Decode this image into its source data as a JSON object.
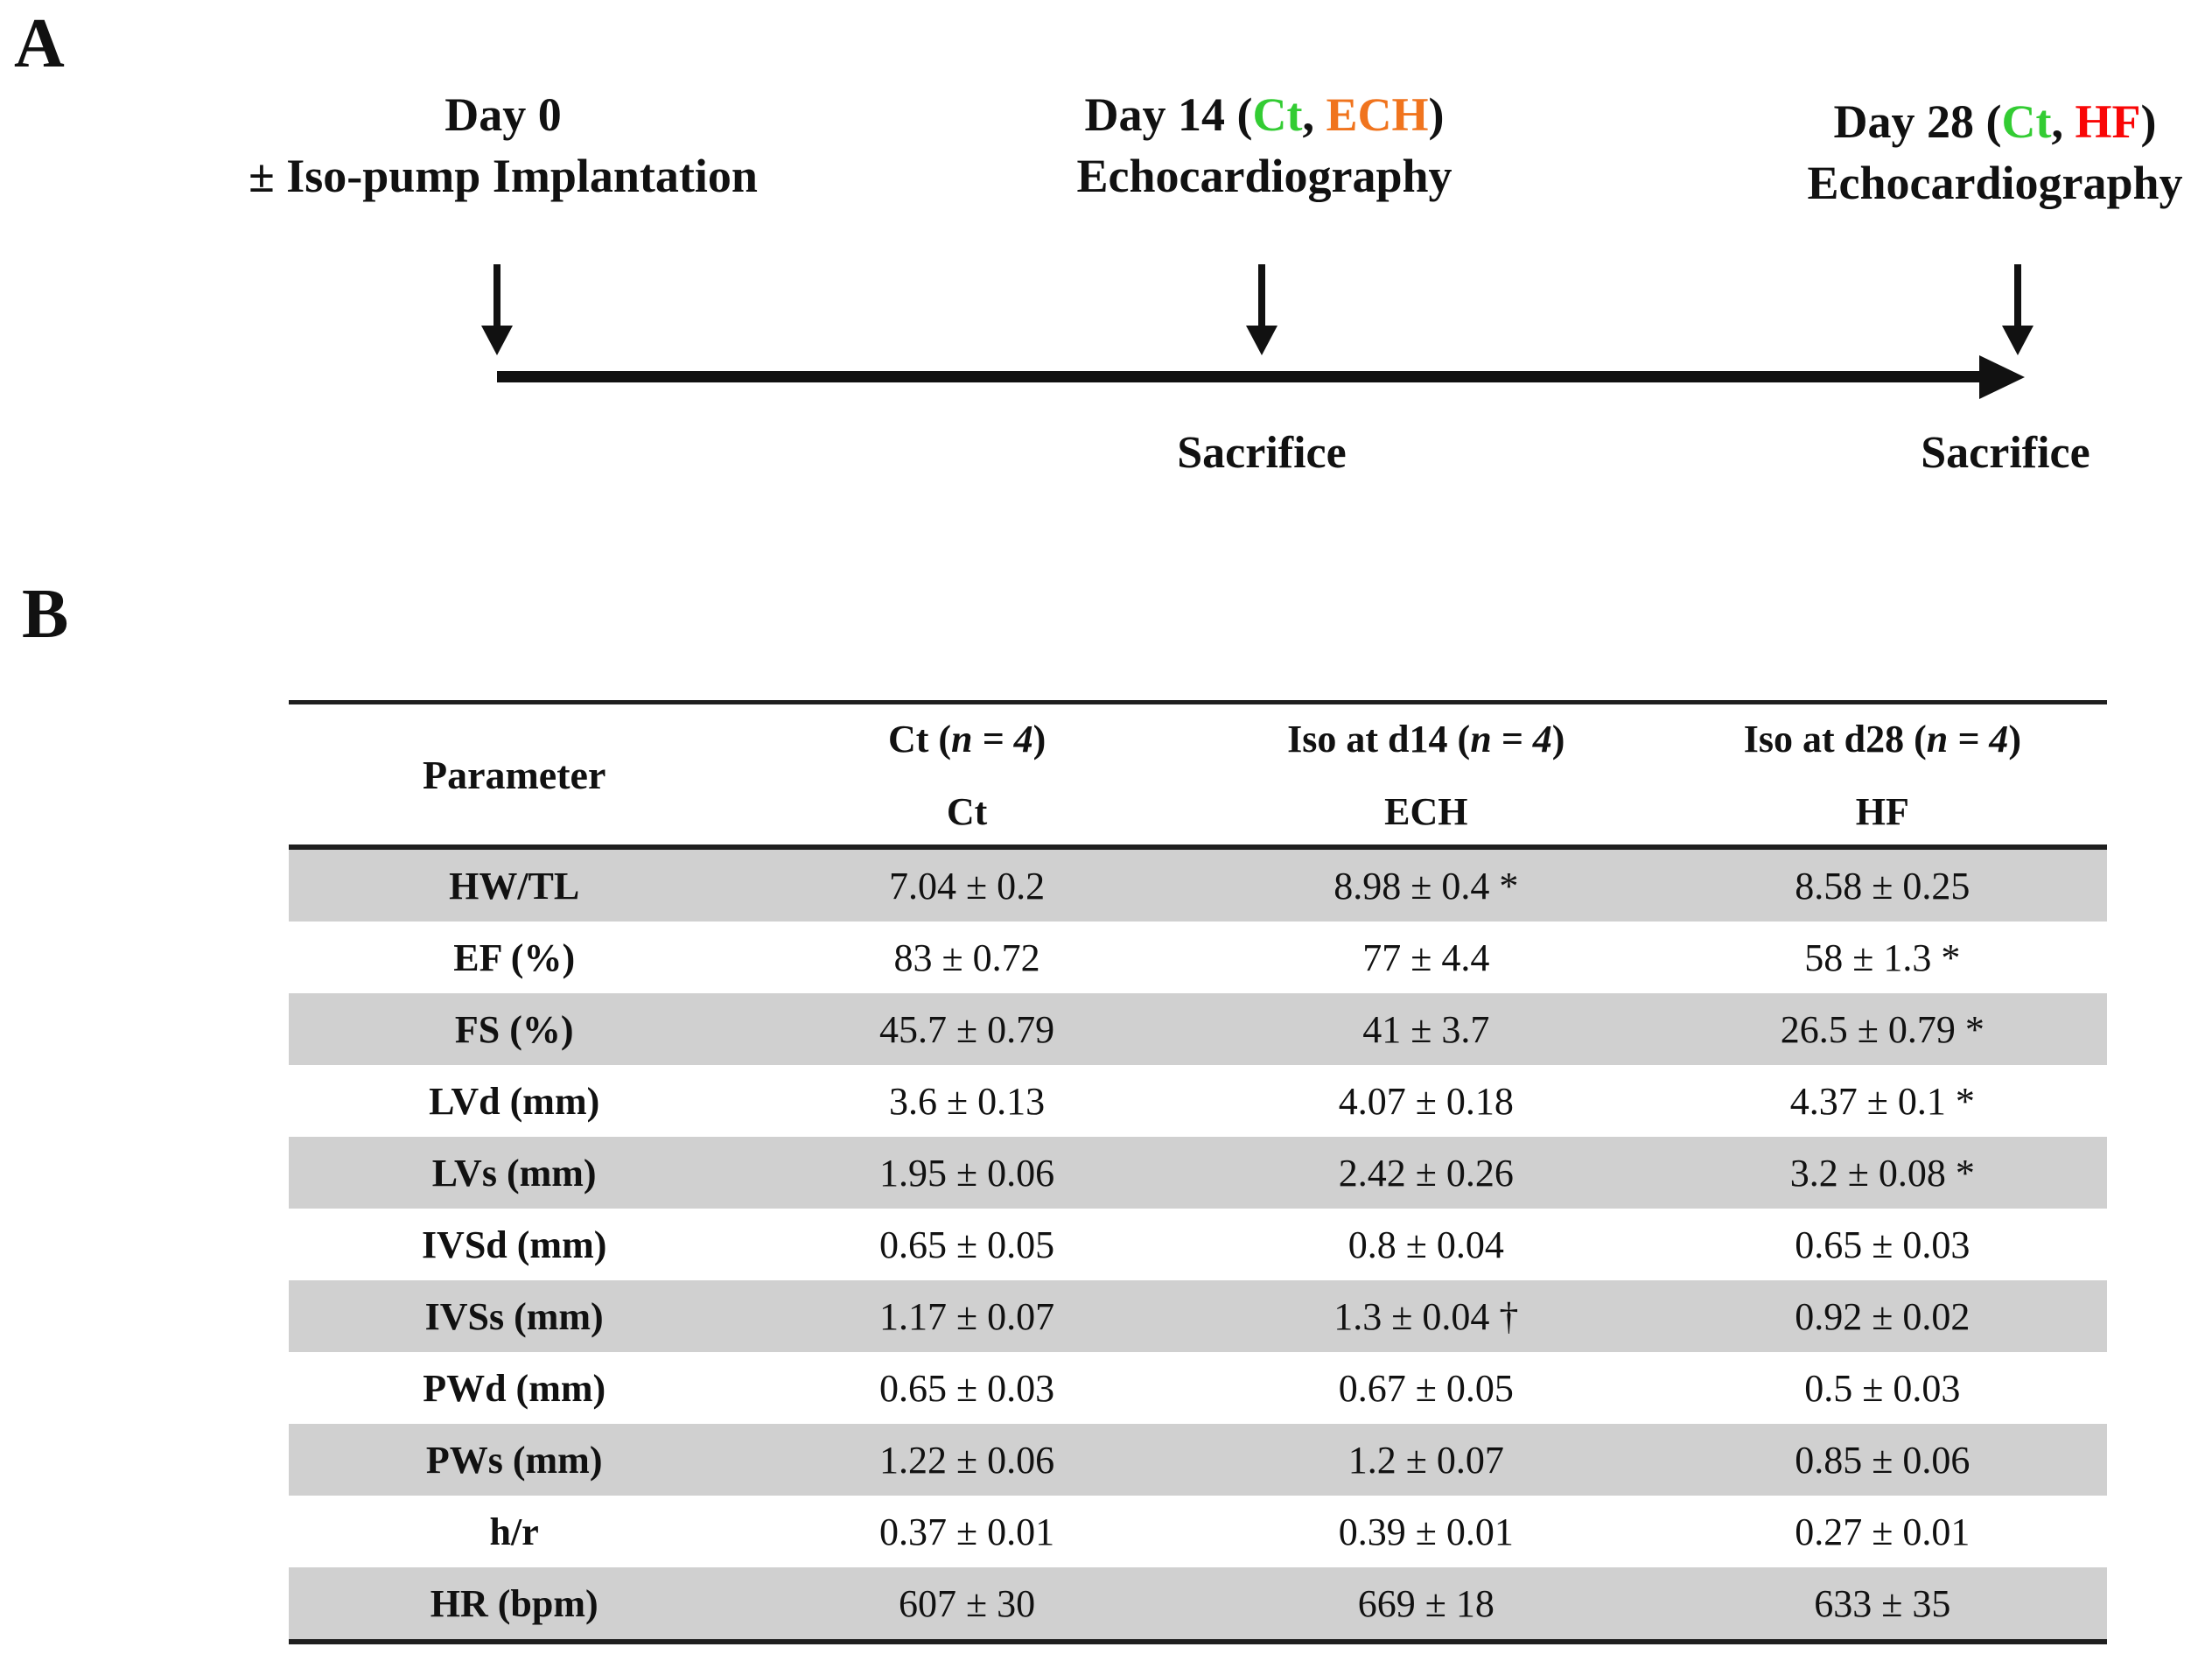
{
  "colors": {
    "green": "#33CC33",
    "orange": "#F0741E",
    "red": "#F90606",
    "text": "#111111",
    "row_gray": "#D0D0D0",
    "rule": "#1F1F1F"
  },
  "panelA": {
    "label": "A",
    "event1": {
      "line1": "Day 0",
      "line2": "± Iso-pump Implantation"
    },
    "event2": {
      "pre": "Day 14 (",
      "ct": "Ct",
      "sep": ", ",
      "grp": "ECH",
      "post": ")",
      "line2": "Echocardiography"
    },
    "event3": {
      "pre": "Day 28 (",
      "ct": "Ct",
      "sep": ", ",
      "grp": "HF",
      "post": ")",
      "line2": "Echocardiography"
    },
    "sacrifice_label": "Sacrifice"
  },
  "panelB": {
    "label": "B",
    "table": {
      "param_header": "Parameter",
      "columns": [
        {
          "group": "Ct ",
          "n_open": "(",
          "n": "n = 4",
          "n_close": ")",
          "sub": "Ct"
        },
        {
          "group": "Iso at d14 ",
          "n_open": "(",
          "n": "n = 4",
          "n_close": ")",
          "sub": "ECH"
        },
        {
          "group": "Iso at d28 ",
          "n_open": "(",
          "n": "n = 4",
          "n_close": ")",
          "sub": "HF"
        }
      ],
      "rows": [
        {
          "param": "HW/TL",
          "values": [
            "7.04 ± 0.2",
            "8.98 ± 0.4 *",
            "8.58 ± 0.25"
          ]
        },
        {
          "param": "EF (%)",
          "values": [
            "83 ± 0.72",
            "77 ± 4.4",
            "58 ± 1.3 *"
          ]
        },
        {
          "param": "FS (%)",
          "values": [
            "45.7 ± 0.79",
            "41 ± 3.7",
            "26.5 ± 0.79 *"
          ]
        },
        {
          "param": "LVd (mm)",
          "values": [
            "3.6 ± 0.13",
            "4.07 ± 0.18",
            "4.37 ± 0.1 *"
          ]
        },
        {
          "param": "LVs (mm)",
          "values": [
            "1.95 ± 0.06",
            "2.42 ± 0.26",
            "3.2 ± 0.08 *"
          ]
        },
        {
          "param": "IVSd (mm)",
          "values": [
            "0.65 ± 0.05",
            "0.8 ± 0.04",
            "0.65 ± 0.03"
          ]
        },
        {
          "param": "IVSs (mm)",
          "values": [
            "1.17 ± 0.07",
            "1.3 ± 0.04 †",
            "0.92 ± 0.02"
          ]
        },
        {
          "param": "PWd (mm)",
          "values": [
            "0.65 ± 0.03",
            "0.67 ± 0.05",
            "0.5 ± 0.03"
          ]
        },
        {
          "param": "PWs (mm)",
          "values": [
            "1.22 ± 0.06",
            "1.2 ± 0.07",
            "0.85 ± 0.06"
          ]
        },
        {
          "param": "h/r",
          "values": [
            "0.37 ± 0.01",
            "0.39 ± 0.01",
            "0.27 ± 0.01"
          ]
        },
        {
          "param": "HR (bpm)",
          "values": [
            "607 ± 30",
            "669 ± 18",
            "633 ± 35"
          ]
        }
      ]
    }
  }
}
